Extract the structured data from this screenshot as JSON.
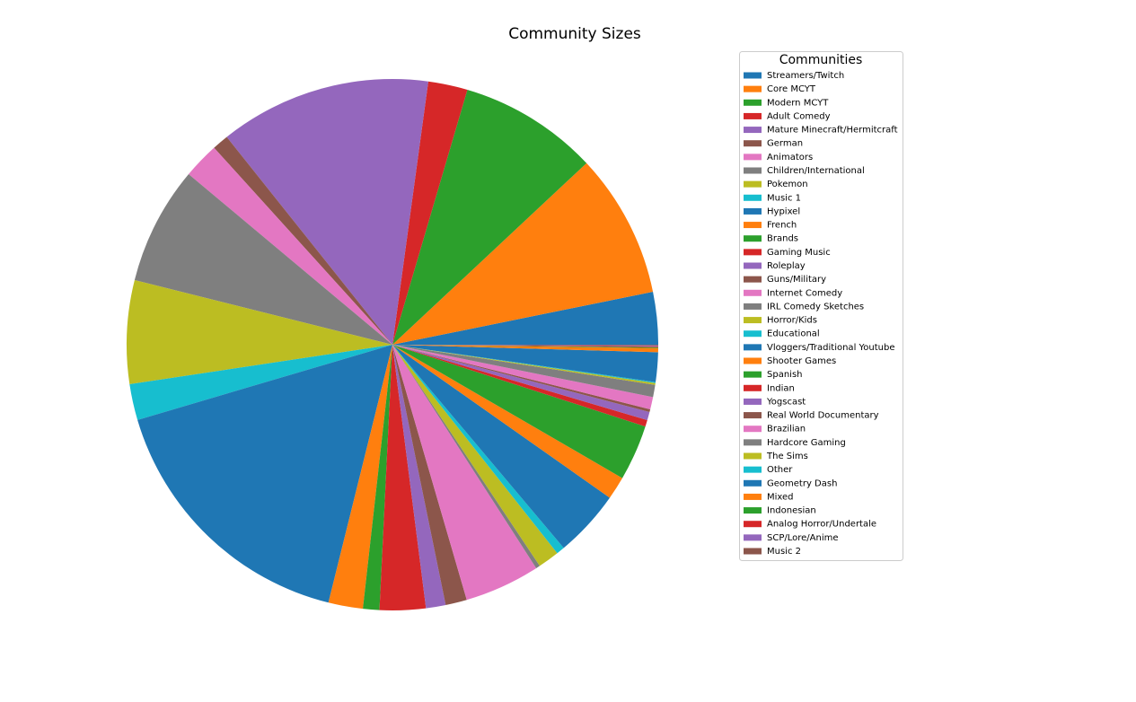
{
  "chart_data": {
    "type": "pie",
    "title": "Community Sizes",
    "legend_title": "Communities",
    "categories": [
      "Streamers/Twitch",
      "Core MCYT",
      "Modern MCYT",
      "Adult Comedy",
      "Mature Minecraft/Hermitcraft",
      "German",
      "Animators",
      "Children/International",
      "Pokemon",
      "Music 1",
      "Hypixel",
      "French",
      "Brands",
      "Gaming Music",
      "Roleplay",
      "Guns/Military",
      "Internet Comedy",
      "IRL Comedy Sketches",
      "Horror/Kids",
      "Educational",
      "Vloggers/Traditional Youtube",
      "Shooter Games",
      "Spanish",
      "Indian",
      "Yogscast",
      "Real World Documentary",
      "Brazilian",
      "Hardcore Gaming",
      "The Sims",
      "Other",
      "Geometry Dash",
      "Mixed",
      "Indonesian",
      "Analog Horror/Undertale",
      "SCP/Lore/Anime",
      "Music 2"
    ],
    "values": [
      3.2,
      8.8,
      8.5,
      2.4,
      12.9,
      1.0,
      2.2,
      7.2,
      6.3,
      2.2,
      16.6,
      2.1,
      1.0,
      2.8,
      1.2,
      1.3,
      4.6,
      0.25,
      1.3,
      0.5,
      4.1,
      1.4,
      3.4,
      0.4,
      0.5,
      0.17,
      0.75,
      0.75,
      0.11,
      0.06,
      1.8,
      0.25,
      0.05,
      0.05,
      0.05,
      0.05
    ],
    "colors": [
      "#1f77b4",
      "#ff7f0e",
      "#2ca02c",
      "#d62728",
      "#9467bd",
      "#8c564b",
      "#e377c2",
      "#7f7f7f",
      "#bcbd22",
      "#17becf",
      "#1f77b4",
      "#ff7f0e",
      "#2ca02c",
      "#d62728",
      "#9467bd",
      "#8c564b",
      "#e377c2",
      "#7f7f7f",
      "#bcbd22",
      "#17becf",
      "#1f77b4",
      "#ff7f0e",
      "#2ca02c",
      "#d62728",
      "#9467bd",
      "#8c564b",
      "#e377c2",
      "#7f7f7f",
      "#bcbd22",
      "#17becf",
      "#1f77b4",
      "#ff7f0e",
      "#2ca02c",
      "#d62728",
      "#9467bd",
      "#8c564b"
    ],
    "start_angle": 0,
    "legend_position": "right"
  }
}
